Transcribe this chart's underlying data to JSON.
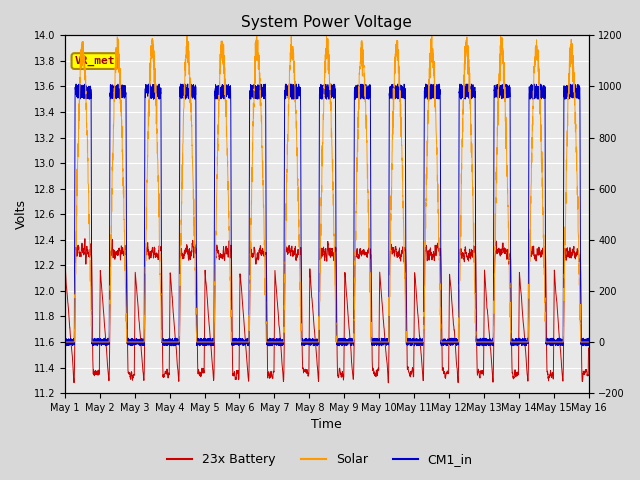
{
  "title": "System Power Voltage",
  "ylabel_left": "Volts",
  "ylim_left": [
    11.2,
    14.0
  ],
  "ylim_right": [
    -200,
    1200
  ],
  "yticks_left": [
    11.2,
    11.4,
    11.6,
    11.8,
    12.0,
    12.2,
    12.4,
    12.6,
    12.8,
    13.0,
    13.2,
    13.4,
    13.6,
    13.8,
    14.0
  ],
  "yticks_right": [
    -200,
    0,
    200,
    400,
    600,
    800,
    1000,
    1200
  ],
  "xlabel": "Time",
  "num_days": 15,
  "background_color": "#d8d8d8",
  "plot_bg_color": "#e8e8e8",
  "grid_color": "#ffffff",
  "battery_color": "#cc0000",
  "solar_color": "#ff9900",
  "cm1_color": "#0000cc",
  "legend_labels": [
    "23x Battery",
    "Solar",
    "CM1_in"
  ],
  "annotation_text": "VR_met",
  "figsize": [
    6.4,
    4.8
  ],
  "dpi": 100
}
